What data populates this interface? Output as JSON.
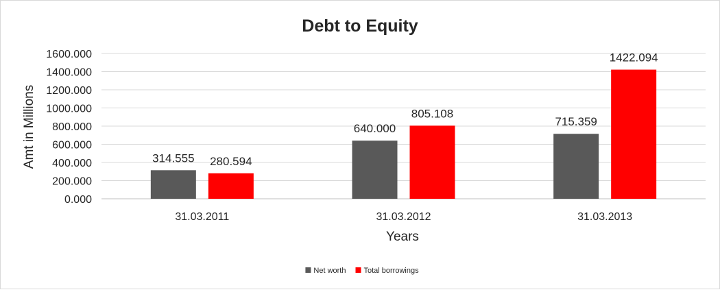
{
  "chart_data": {
    "type": "bar",
    "title": "Debt to Equity",
    "xlabel": "Years",
    "ylabel": "Amt in Millions",
    "categories": [
      "31.03.2011",
      "31.03.2012",
      "31.03.2013"
    ],
    "series": [
      {
        "name": "Net worth",
        "color": "#595959",
        "values": [
          314.555,
          640.0,
          715.359
        ],
        "labels": [
          "314.555",
          "640.000",
          "715.359"
        ]
      },
      {
        "name": "Total borrowings",
        "color": "#ff0000",
        "values": [
          280.594,
          805.108,
          1422.094
        ],
        "labels": [
          "280.594",
          "805.108",
          "1422.094"
        ]
      }
    ],
    "ylim": [
      0,
      1600
    ],
    "yticks": [
      "0.000",
      "200.000",
      "400.000",
      "600.000",
      "800.000",
      "1000.000",
      "1200.000",
      "1400.000",
      "1600.000"
    ],
    "grid": true,
    "legend": "bottom"
  }
}
